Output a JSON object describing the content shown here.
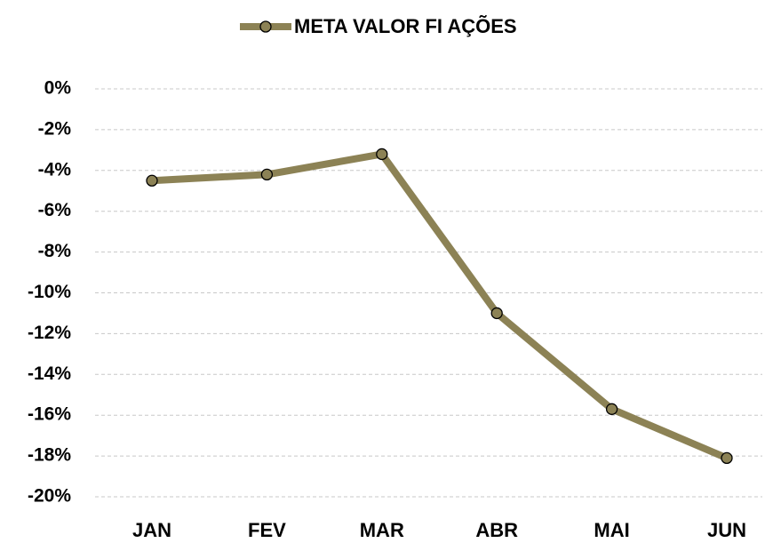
{
  "chart_data": {
    "type": "line",
    "categories": [
      "JAN",
      "FEV",
      "MAR",
      "ABR",
      "MAI",
      "JUN"
    ],
    "series": [
      {
        "name": "META VALOR FI AÇÕES",
        "color": "#8c8255",
        "values": [
          -4.5,
          -4.2,
          -3.2,
          -11.0,
          -15.7,
          -18.1
        ]
      }
    ],
    "ylim": [
      -20,
      0
    ],
    "yticks": [
      {
        "value": 0,
        "label": "0%"
      },
      {
        "value": -2,
        "label": "-2%"
      },
      {
        "value": -4,
        "label": "-4%"
      },
      {
        "value": -6,
        "label": "-6%"
      },
      {
        "value": -8,
        "label": "-8%"
      },
      {
        "value": -10,
        "label": "-10%"
      },
      {
        "value": -12,
        "label": "-12%"
      },
      {
        "value": -14,
        "label": "-14%"
      },
      {
        "value": -16,
        "label": "-16%"
      },
      {
        "value": -18,
        "label": "-18%"
      },
      {
        "value": -20,
        "label": "-20%"
      }
    ],
    "grid": true,
    "legend": "top"
  }
}
